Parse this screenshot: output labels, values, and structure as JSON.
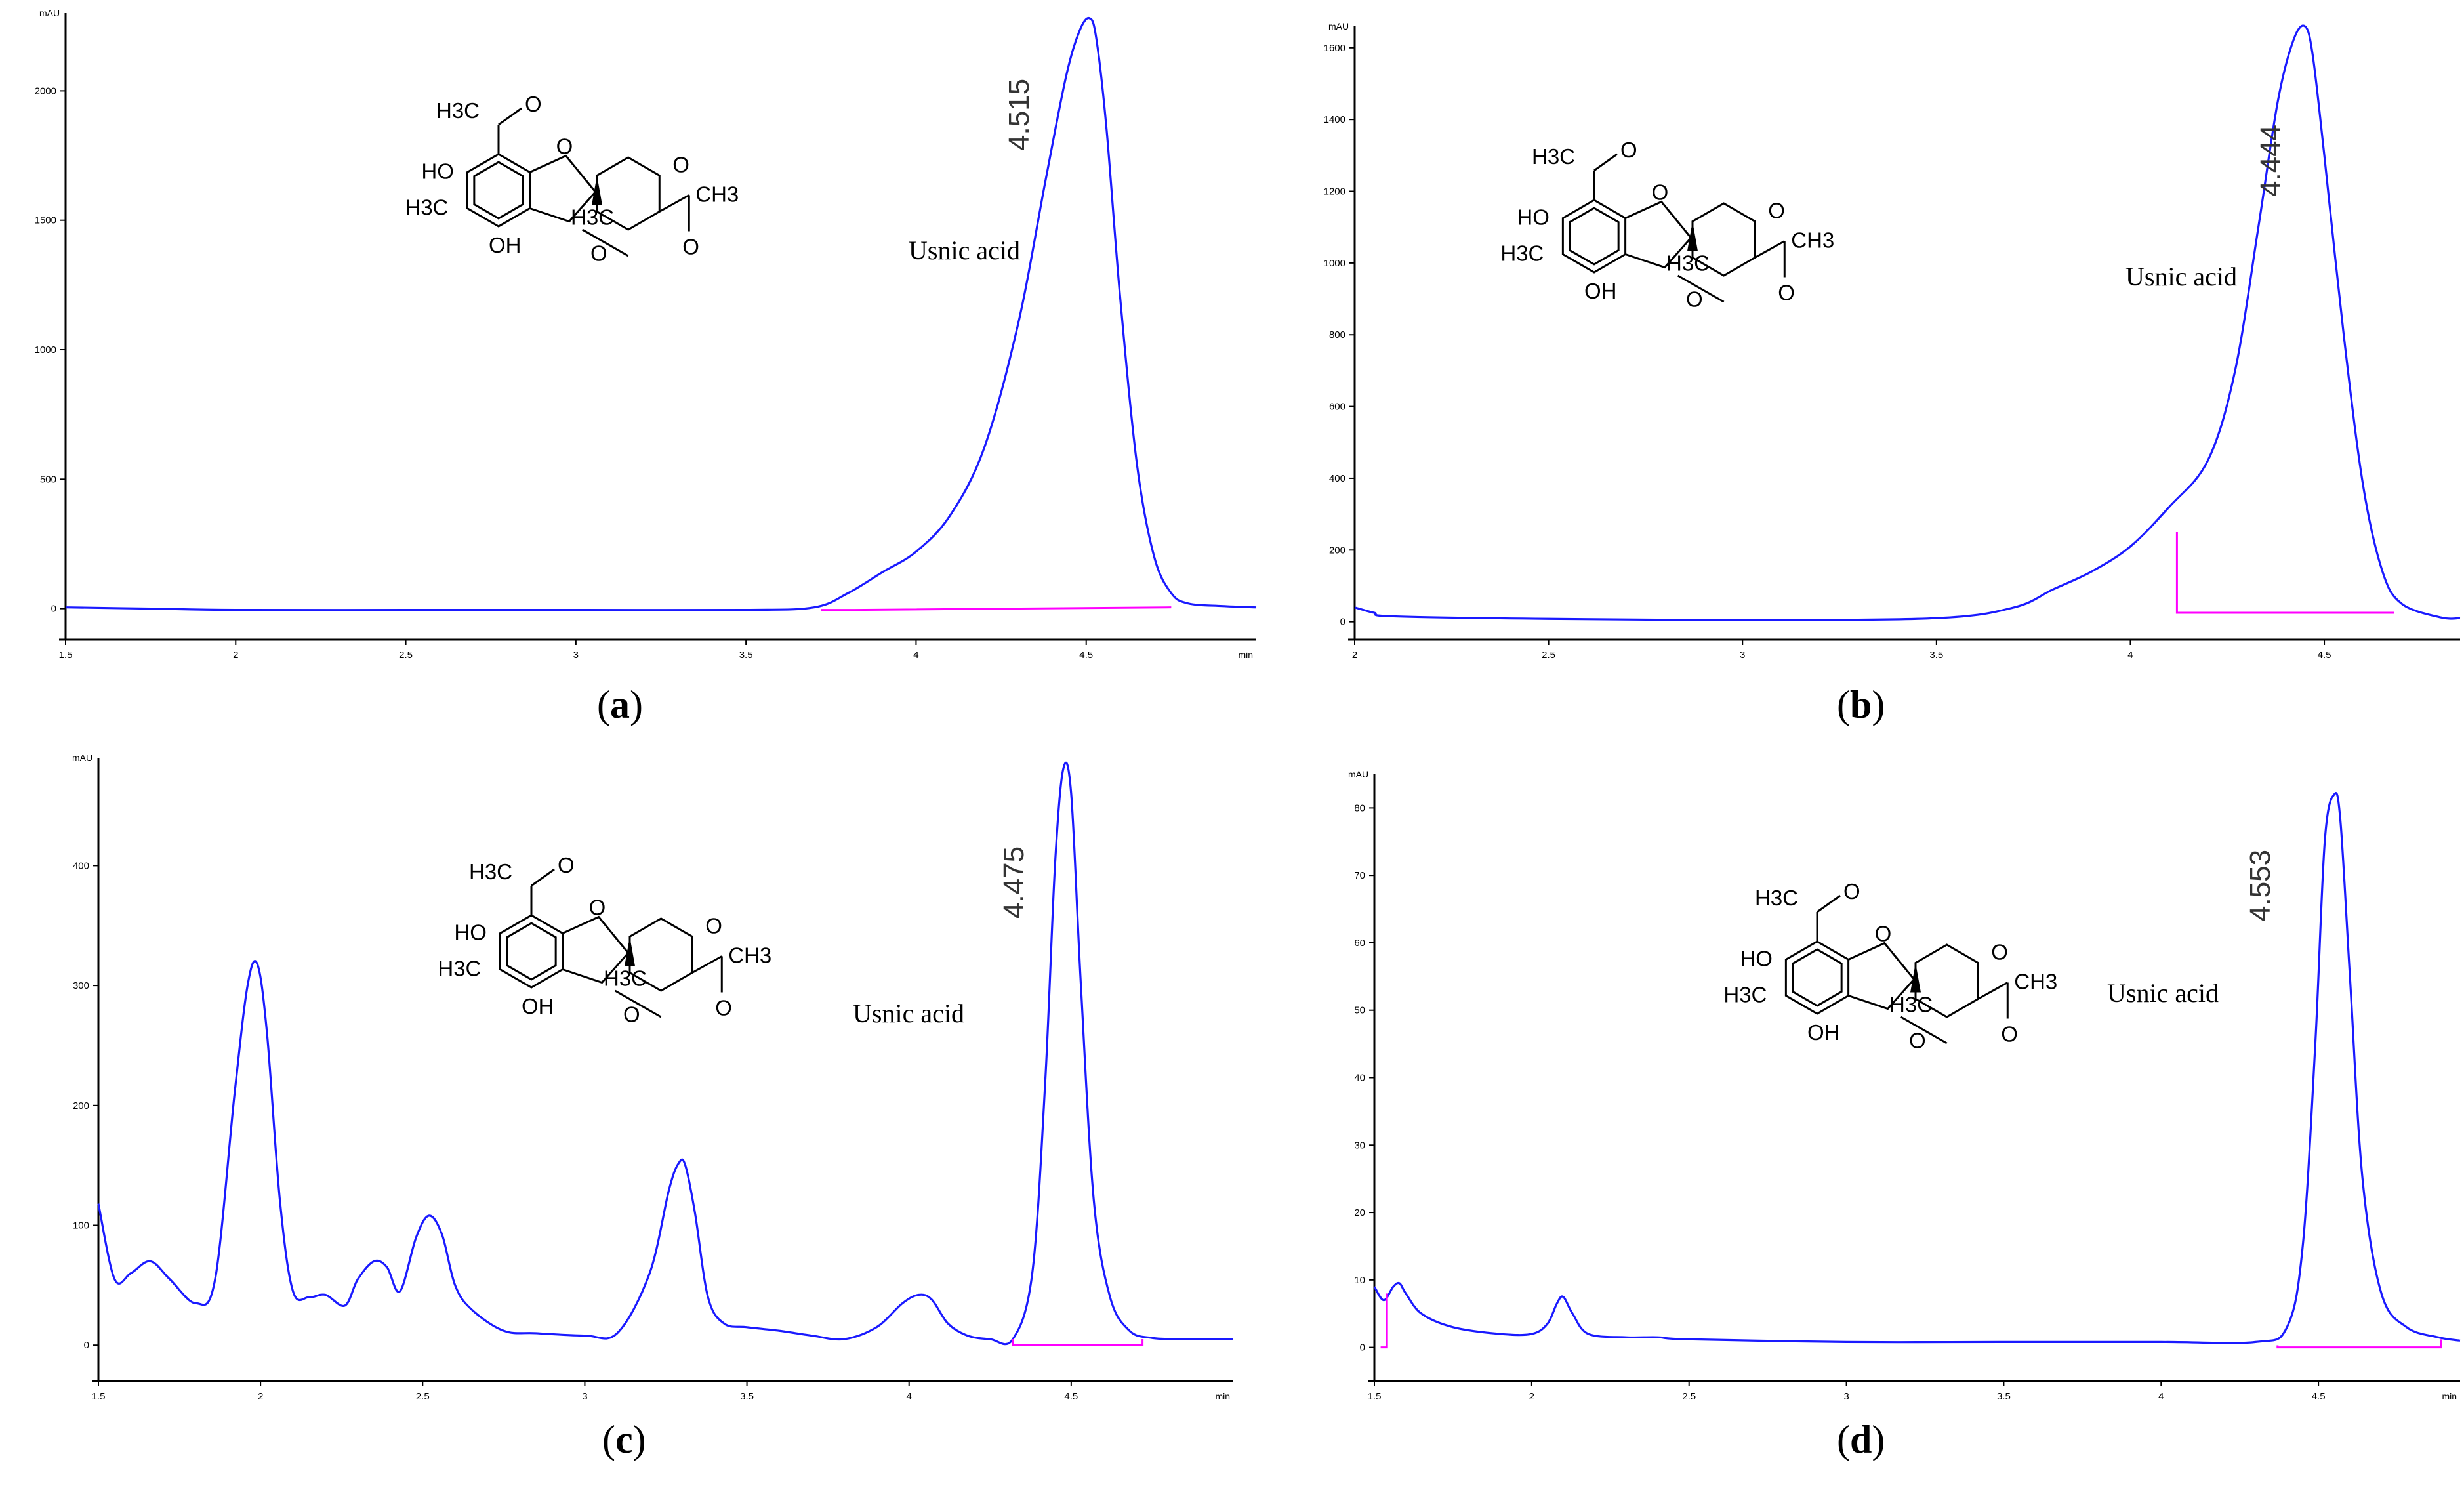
{
  "chart_data": [
    {
      "id": "a",
      "type": "line",
      "caption_letter": "a",
      "ylabel": "mAU",
      "xunit": "min",
      "xlim": [
        1.5,
        5.0
      ],
      "ylim": [
        -120,
        2300
      ],
      "xticks": [
        1.5,
        2,
        2.5,
        3,
        3.5,
        4,
        4.5
      ],
      "xtick_labels": [
        "1.5",
        "2",
        "2.5",
        "3",
        "3.5",
        "4",
        "4.5"
      ],
      "yticks": [
        0,
        500,
        1000,
        1500,
        2000
      ],
      "ytick_labels": [
        "0",
        "500",
        "1000",
        "1500",
        "2000"
      ],
      "peak_label": "4.515",
      "compound_label": "Usnic acid",
      "series": [
        {
          "x": [
            1.5,
            1.75,
            2.0,
            2.5,
            3.0,
            3.5,
            3.7,
            3.8,
            3.9,
            4.0,
            4.1,
            4.2,
            4.3,
            4.38,
            4.44,
            4.48,
            4.51,
            4.53,
            4.56,
            4.6,
            4.65,
            4.7,
            4.75,
            4.8,
            4.9,
            5.0
          ],
          "y": [
            5,
            0,
            -5,
            -5,
            -5,
            -5,
            5,
            60,
            140,
            220,
            360,
            620,
            1100,
            1650,
            2050,
            2230,
            2280,
            2200,
            1850,
            1200,
            550,
            200,
            60,
            20,
            10,
            5
          ]
        }
      ],
      "baseline": {
        "x": [
          3.72,
          3.82,
          3.82,
          4.75
        ],
        "y": [
          -5,
          -5,
          -5,
          5
        ]
      }
    },
    {
      "id": "b",
      "type": "line",
      "caption_letter": "b",
      "ylabel": "mAU",
      "xunit": "",
      "xlim": [
        2.0,
        4.85
      ],
      "ylim": [
        -50,
        1660
      ],
      "xticks": [
        2,
        2.5,
        3,
        3.5,
        4,
        4.5
      ],
      "xtick_labels": [
        "2",
        "2.5",
        "3",
        "3.5",
        "4",
        "4.5"
      ],
      "yticks": [
        0,
        200,
        400,
        600,
        800,
        1000,
        1200,
        1400,
        1600
      ],
      "ytick_labels": [
        "0",
        "200",
        "400",
        "600",
        "800",
        "1000",
        "1200",
        "1400",
        "1600"
      ],
      "peak_label": "4.444",
      "compound_label": "Usnic acid",
      "series": [
        {
          "x": [
            2.0,
            2.05,
            2.1,
            2.5,
            3.0,
            3.5,
            3.7,
            3.8,
            3.9,
            4.0,
            4.1,
            4.2,
            4.27,
            4.33,
            4.38,
            4.42,
            4.45,
            4.47,
            4.5,
            4.55,
            4.6,
            4.65,
            4.7,
            4.8,
            4.85
          ],
          "y": [
            40,
            25,
            15,
            8,
            5,
            10,
            40,
            90,
            140,
            210,
            320,
            450,
            700,
            1100,
            1450,
            1620,
            1660,
            1580,
            1300,
            800,
            380,
            140,
            50,
            12,
            10
          ]
        }
      ],
      "baseline": {
        "x": [
          4.12,
          4.12,
          4.68
        ],
        "y": [
          250,
          25,
          25
        ]
      }
    },
    {
      "id": "c",
      "type": "line",
      "caption_letter": "c",
      "ylabel": "mAU",
      "xunit": "min",
      "xlim": [
        1.5,
        5.0
      ],
      "ylim": [
        -30,
        490
      ],
      "xticks": [
        1.5,
        2,
        2.5,
        3,
        3.5,
        4,
        4.5
      ],
      "xtick_labels": [
        "1.5",
        "2",
        "2.5",
        "3",
        "3.5",
        "4",
        "4.5"
      ],
      "yticks": [
        0,
        100,
        200,
        300,
        400
      ],
      "ytick_labels": [
        "0",
        "100",
        "200",
        "300",
        "400"
      ],
      "peak_label": "4.475",
      "compound_label": "Usnic acid",
      "series": [
        {
          "x": [
            1.5,
            1.55,
            1.6,
            1.66,
            1.72,
            1.8,
            1.86,
            1.92,
            1.96,
            1.99,
            2.02,
            2.06,
            2.1,
            2.15,
            2.2,
            2.26,
            2.3,
            2.35,
            2.39,
            2.43,
            2.48,
            2.52,
            2.56,
            2.6,
            2.65,
            2.75,
            2.85,
            3.0,
            3.1,
            3.2,
            3.26,
            3.29,
            3.31,
            3.34,
            3.38,
            3.43,
            3.5,
            3.6,
            3.7,
            3.8,
            3.9,
            3.98,
            4.03,
            4.07,
            4.12,
            4.18,
            4.25,
            4.32,
            4.38,
            4.42,
            4.45,
            4.475,
            4.5,
            4.53,
            4.57,
            4.62,
            4.68,
            4.75,
            4.85,
            5.0
          ],
          "y": [
            118,
            55,
            60,
            70,
            55,
            35,
            55,
            210,
            300,
            318,
            260,
            120,
            45,
            40,
            42,
            33,
            55,
            70,
            65,
            45,
            90,
            108,
            92,
            50,
            30,
            12,
            10,
            8,
            10,
            60,
            130,
            152,
            150,
            110,
            40,
            18,
            15,
            12,
            8,
            5,
            15,
            35,
            42,
            38,
            18,
            8,
            5,
            5,
            60,
            220,
            400,
            480,
            460,
            300,
            120,
            40,
            12,
            6,
            5,
            5
          ]
        }
      ],
      "baseline": {
        "x": [
          4.32,
          4.32,
          4.72,
          4.72
        ],
        "y": [
          5,
          0,
          0,
          5
        ]
      }
    },
    {
      "id": "d",
      "type": "line",
      "caption_letter": "d",
      "ylabel": "mAU",
      "xunit": "min",
      "xlim": [
        1.5,
        4.95
      ],
      "ylim": [
        -5,
        85
      ],
      "xticks": [
        1.5,
        2,
        2.5,
        3,
        3.5,
        4,
        4.5
      ],
      "xtick_labels": [
        "1.5",
        "2",
        "2.5",
        "3",
        "3.5",
        "4",
        "4.5"
      ],
      "yticks": [
        0,
        10,
        20,
        30,
        40,
        50,
        60,
        70,
        80
      ],
      "ytick_labels": [
        "0",
        "10",
        "20",
        "30",
        "40",
        "50",
        "60",
        "70",
        "80"
      ],
      "peak_label": "4.553",
      "compound_label": "Usnic acid",
      "series": [
        {
          "x": [
            1.5,
            1.53,
            1.56,
            1.58,
            1.6,
            1.65,
            1.75,
            1.9,
            2.0,
            2.05,
            2.08,
            2.1,
            2.13,
            2.18,
            2.3,
            2.4,
            2.5,
            3.0,
            3.5,
            4.0,
            4.3,
            4.4,
            4.45,
            4.49,
            4.52,
            4.55,
            4.57,
            4.6,
            4.64,
            4.7,
            4.78,
            4.88,
            4.95
          ],
          "y": [
            9,
            7,
            9,
            9.5,
            8,
            5,
            3,
            2,
            2,
            3.5,
            6.5,
            7.5,
            5,
            2,
            1.5,
            1.5,
            1.2,
            0.8,
            0.8,
            0.8,
            0.8,
            3,
            15,
            45,
            75,
            82,
            78,
            55,
            25,
            8,
            3,
            1.5,
            1
          ]
        }
      ],
      "baseline": {
        "x": [
          1.52,
          1.52,
          1.54,
          1.54
        ],
        "y": [
          0,
          0,
          0,
          8
        ]
      },
      "baseline2": {
        "x": [
          4.37,
          4.37,
          4.89,
          4.89
        ],
        "y": [
          0.3,
          0,
          0,
          1.2
        ]
      }
    }
  ],
  "structure_labels": {
    "acetyl_top": "H3C",
    "ho": "HO",
    "ring_o": "O",
    "ketone_o": "O",
    "methyl": "H3C",
    "oh": "OH",
    "angular_methyl": "H3C",
    "lower_ketone_o": "O",
    "acetyl_o": "O",
    "acetyl_ch3": "CH3",
    "acetyl_top_o": "O"
  },
  "colors": {
    "trace": "#1a1aff",
    "baseline": "#ff00ff",
    "axis": "#000000"
  }
}
